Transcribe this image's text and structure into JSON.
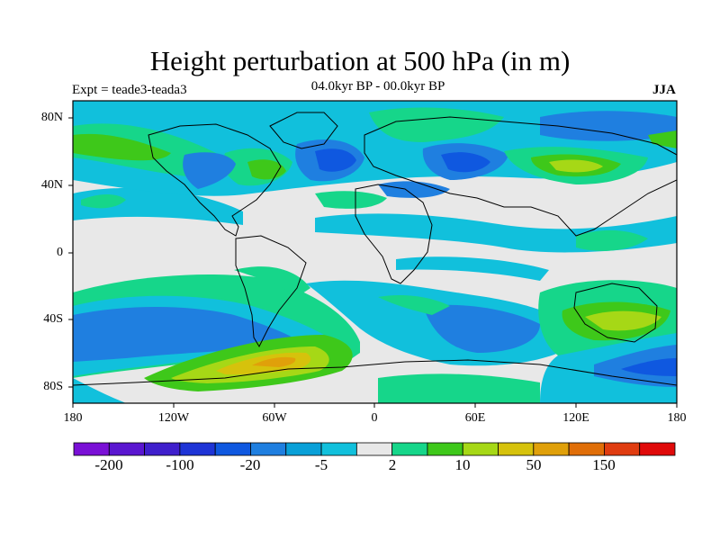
{
  "title": "Height perturbation at 500 hPa (in m)",
  "expt_label": "Expt = teade3-teada3",
  "subtitle": "04.0kyr BP - 00.0kyr BP",
  "season": "JJA",
  "axes": {
    "y_ticks": [
      "80N",
      "40N",
      "0",
      "40S",
      "80S"
    ],
    "x_ticks": [
      "180",
      "120W",
      "60W",
      "0",
      "60E",
      "120E",
      "180"
    ]
  },
  "colorbar": {
    "colors": [
      "#7a10d6",
      "#5a16d0",
      "#3f1fcc",
      "#1e34d6",
      "#0f58e0",
      "#1f7fe0",
      "#09a0d8",
      "#11c0dc",
      "#e8e8e8",
      "#16d68a",
      "#3ec81a",
      "#a6d816",
      "#d6c20c",
      "#e0a00a",
      "#e06e08",
      "#e03c10",
      "#e00a0a"
    ],
    "labels": [
      "-200",
      "-100",
      "-20",
      "-5",
      "2",
      "10",
      "50",
      "150"
    ]
  },
  "colors": {
    "background": "#e8e8e8",
    "light_blue": "#11c0dc",
    "medium_blue": "#09a0d8",
    "blue": "#1f7fe0",
    "dark_blue": "#0f58e0",
    "teal_green": "#16d68a",
    "green": "#3ec81a",
    "yellow_green": "#a6d816",
    "yellow": "#d6c20c",
    "orange": "#e0a00a"
  }
}
